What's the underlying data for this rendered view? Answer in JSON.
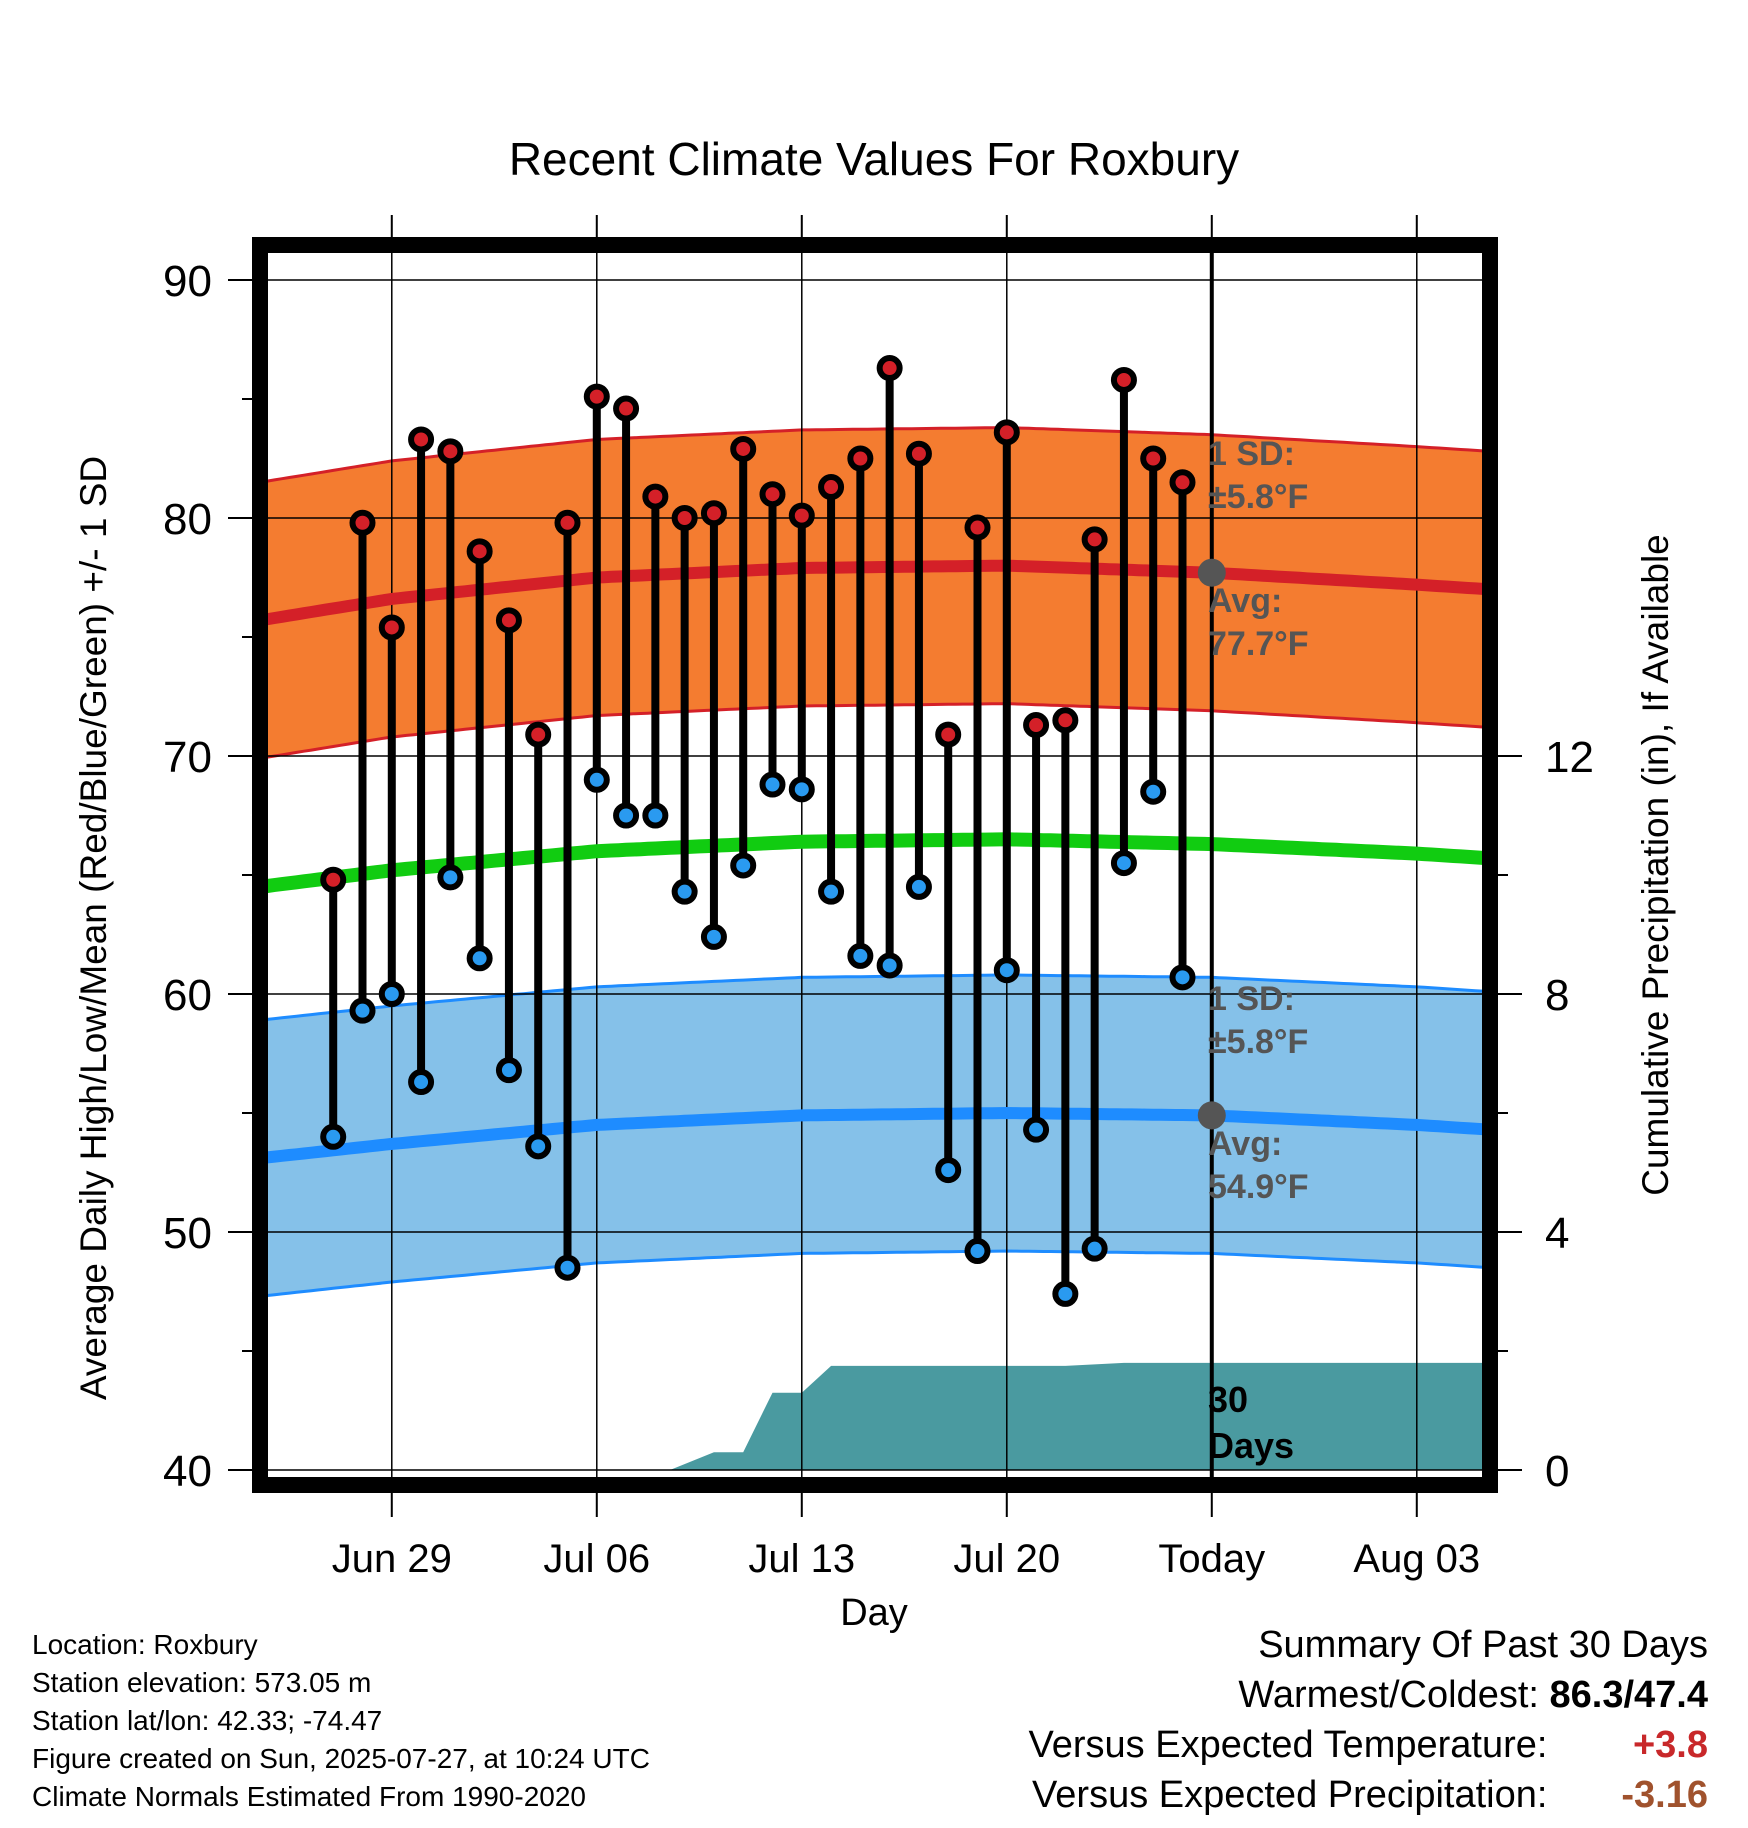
{
  "chart_data": {
    "type": "line",
    "title": "Recent Climate Values For Roxbury",
    "xlabel": "Day",
    "ylabel": "Average Daily High/Low/Mean (Red/Blue/Green) +/- 1 SD",
    "y2label": "Cumulative Precipitation (in), If Available",
    "ylim": [
      40,
      90
    ],
    "y_ticks": [
      "40",
      "50",
      "60",
      "70",
      "80",
      "90"
    ],
    "y2lim": [
      0,
      20
    ],
    "y2_ticks": [
      "0",
      "4",
      "8",
      "12"
    ],
    "x_range_days": [
      -32.5,
      9.5
    ],
    "x_ticks": [
      {
        "day": -28,
        "label": "Jun 29"
      },
      {
        "day": -21,
        "label": "Jul 06"
      },
      {
        "day": -14,
        "label": "Jul 13"
      },
      {
        "day": -7,
        "label": "Jul 20"
      },
      {
        "day": 0,
        "label": "Today"
      },
      {
        "day": 7,
        "label": "Aug 03"
      }
    ],
    "grid": true,
    "colors": {
      "high_band": "#f47c30",
      "high_avg": "#d42028",
      "high_edge": "#d42028",
      "low_band": "#85c1e9",
      "low_avg": "#1e8cff",
      "low_edge": "#1e8cff",
      "mean": "#11cc11",
      "precip": "#4a9aa0",
      "high_dot": "#d42028",
      "low_dot": "#2a9af0",
      "today_marker": "#555555",
      "label_text": "#555555"
    },
    "normals_x": [
      -32.5,
      -28,
      -21,
      -14,
      -7,
      0,
      7,
      9.5
    ],
    "normal_high": [
      75.7,
      76.6,
      77.5,
      77.9,
      78.0,
      77.7,
      77.2,
      77.0
    ],
    "normal_low": [
      53.1,
      53.7,
      54.5,
      54.9,
      55.0,
      54.9,
      54.5,
      54.3
    ],
    "normal_mean": [
      64.5,
      65.2,
      66.0,
      66.4,
      66.5,
      66.3,
      65.9,
      65.7
    ],
    "high_sd": 5.8,
    "low_sd": 5.8,
    "series": [
      {
        "name": "High",
        "x": [
          -30,
          -29,
          -28,
          -27,
          -26,
          -25,
          -24,
          -23,
          -22,
          -21,
          -20,
          -19,
          -18,
          -17,
          -16,
          -15,
          -14,
          -13,
          -12,
          -11,
          -10,
          -9,
          -8,
          -7,
          -6,
          -5,
          -4,
          -3,
          -2,
          -1
        ],
        "values": [
          64.8,
          79.8,
          75.4,
          83.3,
          82.8,
          78.6,
          75.7,
          70.9,
          79.8,
          85.1,
          84.6,
          80.9,
          80.0,
          80.2,
          82.9,
          81.0,
          80.1,
          81.3,
          82.5,
          86.3,
          82.7,
          70.9,
          79.6,
          83.6,
          71.3,
          71.5,
          79.1,
          85.8,
          82.5,
          81.5
        ]
      },
      {
        "name": "Low",
        "x": [
          -30,
          -29,
          -28,
          -27,
          -26,
          -25,
          -24,
          -23,
          -22,
          -21,
          -20,
          -19,
          -18,
          -17,
          -16,
          -15,
          -14,
          -13,
          -12,
          -11,
          -10,
          -9,
          -8,
          -7,
          -6,
          -5,
          -4,
          -3,
          -2,
          -1
        ],
        "values": [
          54.0,
          59.3,
          60.0,
          56.3,
          64.9,
          61.5,
          56.8,
          53.6,
          48.5,
          69.0,
          67.5,
          67.5,
          64.3,
          62.4,
          65.4,
          68.8,
          68.6,
          64.3,
          61.6,
          61.2,
          64.5,
          52.6,
          49.2,
          61.0,
          54.3,
          47.4,
          49.3,
          65.5,
          68.5,
          60.7
        ]
      },
      {
        "name": "Precipitation",
        "x": [
          -32.5,
          -21,
          -20,
          -19,
          -18.5,
          -17,
          -16,
          -15,
          -14,
          -13,
          -12,
          -5,
          -3,
          0,
          9.5
        ],
        "values": [
          0,
          0,
          0,
          0,
          0,
          0.3,
          0.3,
          1.3,
          1.3,
          1.75,
          1.75,
          1.75,
          1.8,
          1.8,
          1.8
        ]
      }
    ],
    "annotations": {
      "high_sd_label": "1 SD:",
      "high_sd_value": "±5.8°F",
      "high_avg_label": "Avg:",
      "high_avg_value": "77.7°F",
      "low_sd_label": "1 SD:",
      "low_sd_value": "±5.8°F",
      "low_avg_label": "Avg:",
      "low_avg_value": "54.9°F",
      "days_label_1": "30",
      "days_label_2": "Days"
    }
  },
  "metadata": {
    "location": "Location: Roxbury",
    "elevation": "Station elevation: 573.05 m",
    "latlon": "Station lat/lon: 42.33; -74.47",
    "created": "Figure created on Sun, 2025-07-27, at 10:24 UTC",
    "normals": "Climate Normals Estimated From 1990-2020"
  },
  "summary": {
    "title": "Summary Of Past 30 Days",
    "warmest_coldest_label": "Warmest/Coldest:",
    "warmest_coldest_value": "86.3/47.4",
    "temp_label": "Versus Expected Temperature:",
    "temp_value": "+3.8",
    "temp_color": "#c8282a",
    "precip_label": "Versus Expected Precipitation:",
    "precip_value": "-3.16",
    "precip_color": "#a0522d"
  }
}
